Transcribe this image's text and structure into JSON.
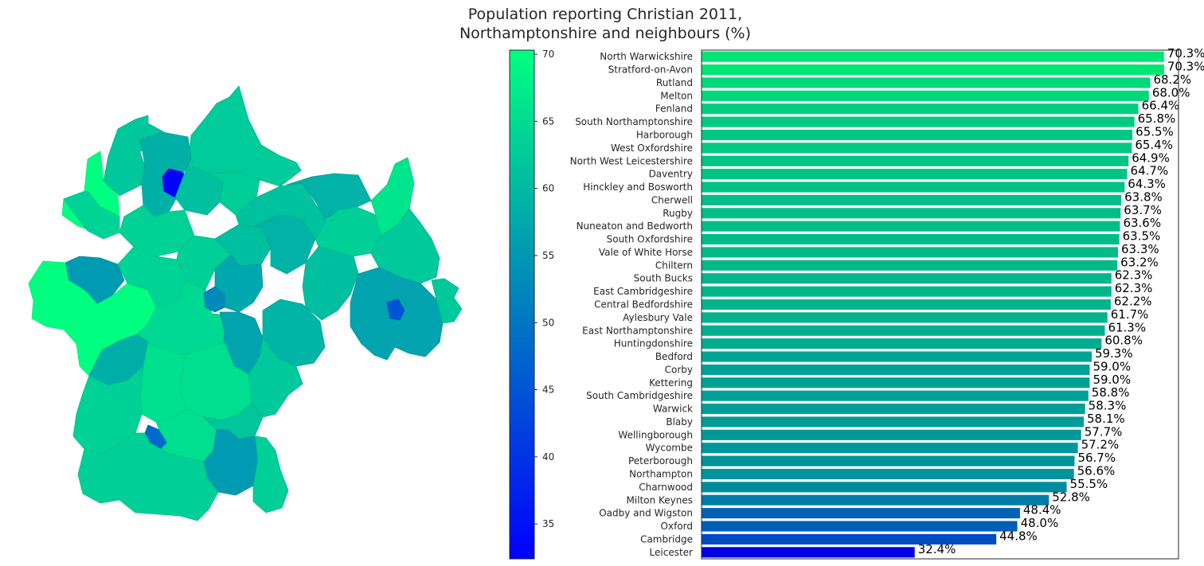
{
  "chart_data": {
    "type": "bar",
    "orientation": "horizontal",
    "title": "Population reporting Christian 2011,\nNorthamptonshire and neighbours (%)",
    "categories": [
      "North Warwickshire",
      "Stratford-on-Avon",
      "Rutland",
      "Melton",
      "Fenland",
      "South Northamptonshire",
      "Harborough",
      "West Oxfordshire",
      "North West Leicestershire",
      "Daventry",
      "Hinckley and Bosworth",
      "Cherwell",
      "Rugby",
      "Nuneaton and Bedworth",
      "South Oxfordshire",
      "Vale of White Horse",
      "Chiltern",
      "South Bucks",
      "East Cambridgeshire",
      "Central Bedfordshire",
      "Aylesbury Vale",
      "East Northamptonshire",
      "Huntingdonshire",
      "Bedford",
      "Corby",
      "Kettering",
      "South Cambridgeshire",
      "Warwick",
      "Blaby",
      "Wellingborough",
      "Wycombe",
      "Peterborough",
      "Northampton",
      "Charnwood",
      "Milton Keynes",
      "Oadby and Wigston",
      "Oxford",
      "Cambridge",
      "Leicester"
    ],
    "values": [
      70.3,
      70.3,
      68.2,
      68.0,
      66.4,
      65.8,
      65.5,
      65.4,
      64.9,
      64.7,
      64.3,
      63.8,
      63.7,
      63.6,
      63.5,
      63.3,
      63.2,
      62.3,
      62.3,
      62.2,
      61.7,
      61.3,
      60.8,
      59.3,
      59.0,
      59.0,
      58.8,
      58.3,
      58.1,
      57.7,
      57.2,
      56.7,
      56.6,
      55.5,
      52.8,
      48.4,
      48.0,
      44.8,
      32.4
    ],
    "value_labels": [
      "70.3%",
      "70.3%",
      "68.2%",
      "68.0%",
      "66.4%",
      "65.8%",
      "65.5%",
      "65.4%",
      "64.9%",
      "64.7%",
      "64.3%",
      "63.8%",
      "63.7%",
      "63.6%",
      "63.5%",
      "63.3%",
      "63.2%",
      "62.3%",
      "62.3%",
      "62.2%",
      "61.7%",
      "61.3%",
      "60.8%",
      "59.3%",
      "59.0%",
      "59.0%",
      "58.8%",
      "58.3%",
      "58.1%",
      "57.7%",
      "57.2%",
      "56.7%",
      "56.6%",
      "55.5%",
      "52.8%",
      "48.4%",
      "48.0%",
      "44.8%",
      "32.4%"
    ],
    "xlim": [
      0,
      72.5
    ],
    "colorbar": {
      "min": 32.4,
      "max": 70.3,
      "ticks": [
        "35",
        "40",
        "45",
        "50",
        "55",
        "60",
        "65",
        "70"
      ],
      "tick_values": [
        35,
        40,
        45,
        50,
        55,
        60,
        65,
        70
      ]
    },
    "colormap": {
      "low": "#0000ff",
      "high": "#00ff80"
    },
    "map_note": "Choropleth map of districts coloured by the same scale"
  }
}
